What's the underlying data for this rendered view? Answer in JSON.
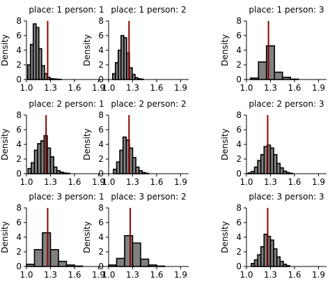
{
  "chart_data": [
    {
      "type": "bar",
      "title": "place: 1 person: 1",
      "ylabel": "Density",
      "xlim": [
        1.0,
        2.0
      ],
      "ylim": [
        0,
        8
      ],
      "xticks": [
        "1.0",
        "1.3",
        "1.6",
        "1.9"
      ],
      "yticks": [
        "0",
        "2",
        "4",
        "6",
        "8"
      ],
      "reference_line": 1.265,
      "bins": [
        {
          "x0": 1.015,
          "x1": 1.05,
          "y": 2.0
        },
        {
          "x0": 1.05,
          "x1": 1.085,
          "y": 4.8
        },
        {
          "x0": 1.085,
          "x1": 1.12,
          "y": 7.6
        },
        {
          "x0": 1.12,
          "x1": 1.155,
          "y": 7.1
        },
        {
          "x0": 1.155,
          "x1": 1.19,
          "y": 4.2
        },
        {
          "x0": 1.19,
          "x1": 1.225,
          "y": 1.9
        },
        {
          "x0": 1.225,
          "x1": 1.26,
          "y": 0.8
        },
        {
          "x0": 1.26,
          "x1": 1.295,
          "y": 0.3
        },
        {
          "x0": 1.295,
          "x1": 1.33,
          "y": 0.12
        },
        {
          "x0": 1.33,
          "x1": 1.365,
          "y": 0.08
        },
        {
          "x0": 1.365,
          "x1": 1.4,
          "y": 0.05
        },
        {
          "x0": 1.4,
          "x1": 1.435,
          "y": 0.03
        }
      ]
    },
    {
      "type": "bar",
      "title": "place: 1 person: 2",
      "ylabel": "Density",
      "xlim": [
        1.0,
        2.0
      ],
      "ylim": [
        0,
        8
      ],
      "xticks": [
        "1.0",
        "1.3",
        "1.6",
        "1.9"
      ],
      "yticks": [
        "0",
        "2",
        "4",
        "6",
        "8"
      ],
      "reference_line": 1.255,
      "bins": [
        {
          "x0": 1.05,
          "x1": 1.085,
          "y": 0.8
        },
        {
          "x0": 1.085,
          "x1": 1.12,
          "y": 2.3
        },
        {
          "x0": 1.12,
          "x1": 1.155,
          "y": 4.0
        },
        {
          "x0": 1.155,
          "x1": 1.19,
          "y": 6.0
        },
        {
          "x0": 1.19,
          "x1": 1.225,
          "y": 5.7
        },
        {
          "x0": 1.225,
          "x1": 1.26,
          "y": 3.6
        },
        {
          "x0": 1.26,
          "x1": 1.295,
          "y": 1.6
        },
        {
          "x0": 1.295,
          "x1": 1.33,
          "y": 0.7
        },
        {
          "x0": 1.33,
          "x1": 1.365,
          "y": 0.25
        },
        {
          "x0": 1.365,
          "x1": 1.4,
          "y": 0.1
        },
        {
          "x0": 1.4,
          "x1": 1.435,
          "y": 0.05
        }
      ]
    },
    {
      "type": "bar",
      "title": "place: 1 person: 3",
      "ylabel": "Density",
      "xlim": [
        1.0,
        2.0
      ],
      "ylim": [
        0,
        8
      ],
      "xticks": [
        "1.0",
        "1.3",
        "1.6",
        "1.9"
      ],
      "yticks": [
        "0",
        "2",
        "4",
        "6",
        "8"
      ],
      "reference_line": 1.275,
      "bins": [
        {
          "x0": 1.05,
          "x1": 1.15,
          "y": 0.2
        },
        {
          "x0": 1.15,
          "x1": 1.25,
          "y": 2.4
        },
        {
          "x0": 1.25,
          "x1": 1.35,
          "y": 4.6
        },
        {
          "x0": 1.35,
          "x1": 1.45,
          "y": 1.0
        },
        {
          "x0": 1.45,
          "x1": 1.55,
          "y": 0.3
        },
        {
          "x0": 1.55,
          "x1": 1.65,
          "y": 0.05
        }
      ]
    },
    {
      "type": "bar",
      "title": "place: 2 person: 1",
      "ylabel": "Density",
      "xlim": [
        1.0,
        2.0
      ],
      "ylim": [
        0,
        8
      ],
      "xticks": [
        "1.0",
        "1.3",
        "1.6",
        "1.9"
      ],
      "yticks": [
        "0",
        "2",
        "4",
        "6",
        "8"
      ],
      "reference_line": 1.245,
      "bins": [
        {
          "x0": 1.02,
          "x1": 1.06,
          "y": 0.7
        },
        {
          "x0": 1.06,
          "x1": 1.1,
          "y": 1.5
        },
        {
          "x0": 1.1,
          "x1": 1.14,
          "y": 3.2
        },
        {
          "x0": 1.14,
          "x1": 1.18,
          "y": 4.1
        },
        {
          "x0": 1.18,
          "x1": 1.22,
          "y": 4.5
        },
        {
          "x0": 1.22,
          "x1": 1.26,
          "y": 5.2
        },
        {
          "x0": 1.26,
          "x1": 1.3,
          "y": 3.5
        },
        {
          "x0": 1.3,
          "x1": 1.34,
          "y": 2.3
        },
        {
          "x0": 1.34,
          "x1": 1.38,
          "y": 0.9
        },
        {
          "x0": 1.38,
          "x1": 1.42,
          "y": 0.4
        },
        {
          "x0": 1.42,
          "x1": 1.46,
          "y": 0.2
        },
        {
          "x0": 1.46,
          "x1": 1.5,
          "y": 0.1
        },
        {
          "x0": 1.5,
          "x1": 1.54,
          "y": 0.05
        }
      ]
    },
    {
      "type": "bar",
      "title": "place: 2 person: 2",
      "ylabel": "Density",
      "xlim": [
        1.0,
        2.0
      ],
      "ylim": [
        0,
        8
      ],
      "xticks": [
        "1.0",
        "1.3",
        "1.6",
        "1.9"
      ],
      "yticks": [
        "0",
        "2",
        "4",
        "6",
        "8"
      ],
      "reference_line": 1.255,
      "bins": [
        {
          "x0": 1.06,
          "x1": 1.1,
          "y": 0.6
        },
        {
          "x0": 1.1,
          "x1": 1.14,
          "y": 1.6
        },
        {
          "x0": 1.14,
          "x1": 1.18,
          "y": 3.2
        },
        {
          "x0": 1.18,
          "x1": 1.22,
          "y": 5.0
        },
        {
          "x0": 1.22,
          "x1": 1.26,
          "y": 4.6
        },
        {
          "x0": 1.26,
          "x1": 1.3,
          "y": 3.5
        },
        {
          "x0": 1.3,
          "x1": 1.34,
          "y": 2.2
        },
        {
          "x0": 1.34,
          "x1": 1.38,
          "y": 0.9
        },
        {
          "x0": 1.38,
          "x1": 1.42,
          "y": 0.4
        },
        {
          "x0": 1.42,
          "x1": 1.46,
          "y": 0.15
        },
        {
          "x0": 1.46,
          "x1": 1.5,
          "y": 0.05
        }
      ]
    },
    {
      "type": "bar",
      "title": "place: 2 person: 3",
      "ylabel": "Density",
      "xlim": [
        1.0,
        2.0
      ],
      "ylim": [
        0,
        8
      ],
      "xticks": [
        "1.0",
        "1.3",
        "1.6",
        "1.9"
      ],
      "yticks": [
        "0",
        "2",
        "4",
        "6",
        "8"
      ],
      "reference_line": 1.265,
      "bins": [
        {
          "x0": 1.02,
          "x1": 1.06,
          "y": 0.1
        },
        {
          "x0": 1.06,
          "x1": 1.1,
          "y": 0.3
        },
        {
          "x0": 1.1,
          "x1": 1.14,
          "y": 0.9
        },
        {
          "x0": 1.14,
          "x1": 1.18,
          "y": 1.8
        },
        {
          "x0": 1.18,
          "x1": 1.22,
          "y": 2.6
        },
        {
          "x0": 1.22,
          "x1": 1.26,
          "y": 3.7
        },
        {
          "x0": 1.26,
          "x1": 1.3,
          "y": 3.9
        },
        {
          "x0": 1.3,
          "x1": 1.34,
          "y": 3.5
        },
        {
          "x0": 1.34,
          "x1": 1.38,
          "y": 2.6
        },
        {
          "x0": 1.38,
          "x1": 1.42,
          "y": 1.4
        },
        {
          "x0": 1.42,
          "x1": 1.46,
          "y": 0.8
        },
        {
          "x0": 1.46,
          "x1": 1.5,
          "y": 0.35
        },
        {
          "x0": 1.5,
          "x1": 1.54,
          "y": 0.15
        },
        {
          "x0": 1.54,
          "x1": 1.58,
          "y": 0.05
        }
      ]
    },
    {
      "type": "bar",
      "title": "place: 3 person: 1",
      "ylabel": "Density",
      "xlim": [
        1.0,
        2.0
      ],
      "ylim": [
        0,
        8
      ],
      "xticks": [
        "1.0",
        "1.3",
        "1.6",
        "1.9"
      ],
      "yticks": [
        "0",
        "2",
        "4",
        "6",
        "8"
      ],
      "reference_line": 1.265,
      "bins": [
        {
          "x0": 1.0,
          "x1": 1.1,
          "y": 0.3
        },
        {
          "x0": 1.1,
          "x1": 1.2,
          "y": 2.3
        },
        {
          "x0": 1.2,
          "x1": 1.3,
          "y": 4.6
        },
        {
          "x0": 1.3,
          "x1": 1.4,
          "y": 2.3
        },
        {
          "x0": 1.4,
          "x1": 1.5,
          "y": 0.7
        },
        {
          "x0": 1.5,
          "x1": 1.6,
          "y": 0.2
        },
        {
          "x0": 1.6,
          "x1": 1.7,
          "y": 0.05
        }
      ]
    },
    {
      "type": "bar",
      "title": "place: 3 person: 2",
      "ylabel": "Density",
      "xlim": [
        1.0,
        2.0
      ],
      "ylim": [
        0,
        8
      ],
      "xticks": [
        "1.0",
        "1.3",
        "1.6",
        "1.9"
      ],
      "yticks": [
        "0",
        "2",
        "4",
        "6",
        "8"
      ],
      "reference_line": 1.27,
      "bins": [
        {
          "x0": 1.0,
          "x1": 1.1,
          "y": 0.2
        },
        {
          "x0": 1.1,
          "x1": 1.2,
          "y": 1.1
        },
        {
          "x0": 1.2,
          "x1": 1.3,
          "y": 4.2
        },
        {
          "x0": 1.3,
          "x1": 1.4,
          "y": 3.2
        },
        {
          "x0": 1.4,
          "x1": 1.5,
          "y": 1.0
        },
        {
          "x0": 1.5,
          "x1": 1.6,
          "y": 0.2
        },
        {
          "x0": 1.6,
          "x1": 1.7,
          "y": 0.05
        }
      ]
    },
    {
      "type": "bar",
      "title": "place: 3 person: 3",
      "ylabel": "Density",
      "xlim": [
        1.0,
        2.0
      ],
      "ylim": [
        0,
        8
      ],
      "xticks": [
        "1.0",
        "1.3",
        "1.6",
        "1.9"
      ],
      "yticks": [
        "0",
        "2",
        "4",
        "6",
        "8"
      ],
      "reference_line": 1.265,
      "bins": [
        {
          "x0": 1.06,
          "x1": 1.1,
          "y": 0.4
        },
        {
          "x0": 1.1,
          "x1": 1.14,
          "y": 0.9
        },
        {
          "x0": 1.14,
          "x1": 1.18,
          "y": 1.6
        },
        {
          "x0": 1.18,
          "x1": 1.22,
          "y": 2.7
        },
        {
          "x0": 1.22,
          "x1": 1.26,
          "y": 4.4
        },
        {
          "x0": 1.26,
          "x1": 1.3,
          "y": 4.1
        },
        {
          "x0": 1.3,
          "x1": 1.34,
          "y": 3.6
        },
        {
          "x0": 1.34,
          "x1": 1.38,
          "y": 2.4
        },
        {
          "x0": 1.38,
          "x1": 1.42,
          "y": 1.3
        },
        {
          "x0": 1.42,
          "x1": 1.46,
          "y": 0.7
        },
        {
          "x0": 1.46,
          "x1": 1.5,
          "y": 0.3
        },
        {
          "x0": 1.5,
          "x1": 1.54,
          "y": 0.1
        }
      ]
    }
  ],
  "colors": {
    "bar_fill": "#808080",
    "bar_edge": "#000000",
    "reference_line": "#8b0000",
    "axis": "#000000"
  }
}
